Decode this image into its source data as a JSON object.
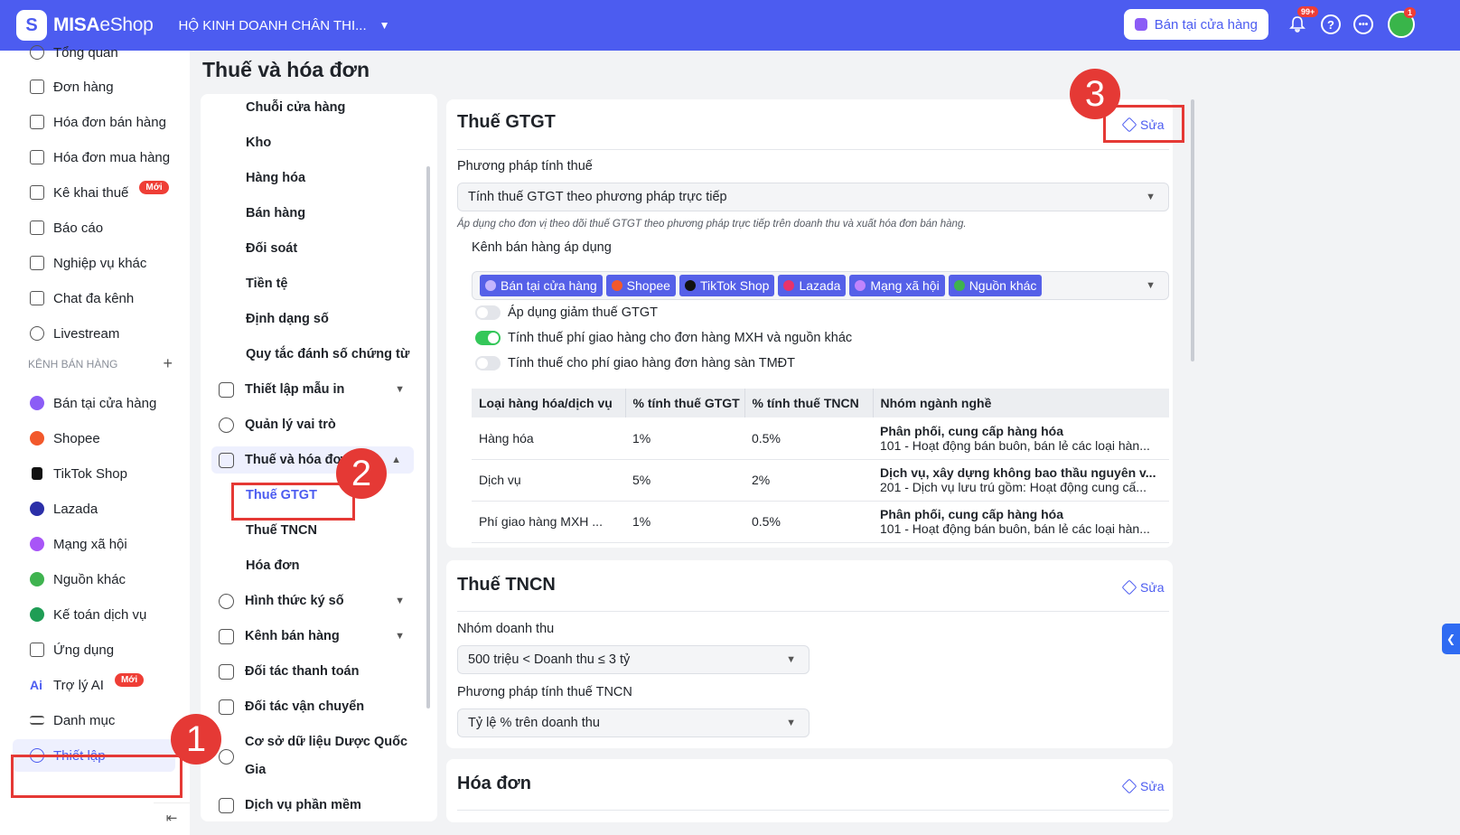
{
  "topbar": {
    "logo_bold": "MISA",
    "logo_thin": "eShop",
    "store_name": "HỘ KINH DOANH CHÂN THI...",
    "sell_button": "Bán tại cửa hàng",
    "notif_badge": "99+",
    "help_icon_text": "?",
    "avatar_badge": "1",
    "brand_color": "#4c5cf0"
  },
  "sidebar": {
    "items": [
      {
        "label": "Tổng quan",
        "icon": "dashboard-icon"
      },
      {
        "label": "Đơn hàng",
        "icon": "order-icon"
      },
      {
        "label": "Hóa đơn bán hàng",
        "icon": "sales-invoice-icon"
      },
      {
        "label": "Hóa đơn mua hàng",
        "icon": "purchase-invoice-icon"
      },
      {
        "label": "Kê khai thuế",
        "icon": "tax-declaration-icon",
        "badge": "Mới"
      },
      {
        "label": "Báo cáo",
        "icon": "report-icon"
      },
      {
        "label": "Nghiệp vụ khác",
        "icon": "other-ops-icon"
      },
      {
        "label": "Chat đa kênh",
        "icon": "chat-icon"
      },
      {
        "label": "Livestream",
        "icon": "livestream-icon"
      }
    ],
    "section_title": "KÊNH BÁN HÀNG",
    "channels": [
      {
        "label": "Bán tại cửa hàng",
        "color": "#8b5cf6"
      },
      {
        "label": "Shopee",
        "color": "#f2582b"
      },
      {
        "label": "TikTok Shop",
        "color": "#111111"
      },
      {
        "label": "Lazada",
        "color": "#2b2fa8"
      },
      {
        "label": "Mạng xã hội",
        "color": "#a855f7"
      },
      {
        "label": "Nguồn khác",
        "color": "#3fb34f"
      },
      {
        "label": "Kế toán dịch vụ",
        "color": "#1f9d55"
      }
    ],
    "extras": [
      {
        "label": "Ứng dụng",
        "icon": "apps-icon"
      },
      {
        "label": "Trợ lý AI",
        "icon": "ai-icon",
        "badge": "Mới"
      },
      {
        "label": "Danh mục",
        "icon": "list-icon"
      },
      {
        "label": "Thiết lập",
        "icon": "gear-icon"
      }
    ]
  },
  "page_title": "Thuế và hóa đơn",
  "settings_menu": {
    "items": [
      "Chuỗi cửa hàng",
      "Kho",
      "Hàng hóa",
      "Bán hàng",
      "Đối soát",
      "Tiền tệ",
      "Định dạng số",
      "Quy tắc đánh số chứng từ",
      "Thiết lập mẫu in",
      "Quản lý vai trò",
      "Thuế và hóa đơn",
      "Thuế GTGT",
      "Thuế TNCN",
      "Hóa đơn",
      "Hình thức ký số",
      "Kênh bán hàng",
      "Đối tác thanh toán",
      "Đối tác vận chuyển",
      "Cơ sở dữ liệu Dược Quốc",
      "Gia",
      "Dịch vụ phần mềm"
    ]
  },
  "gtgt": {
    "title": "Thuế GTGT",
    "edit": "Sửa",
    "method_label": "Phương pháp tính thuế",
    "method_value": "Tính thuế GTGT theo phương pháp trực tiếp",
    "note": "Áp dụng cho đơn vị theo dõi thuế GTGT theo phương pháp trực tiếp trên doanh thu và xuất hóa đơn bán hàng.",
    "channels_label": "Kênh bán hàng áp dụng",
    "channels": [
      {
        "label": "Bán tại cửa hàng",
        "color": "#c4b5fd"
      },
      {
        "label": "Shopee",
        "color": "#f2582b"
      },
      {
        "label": "TikTok Shop",
        "color": "#111111"
      },
      {
        "label": "Lazada",
        "color": "#e8336b"
      },
      {
        "label": "Mạng xã hội",
        "color": "#c084fc"
      },
      {
        "label": "Nguồn khác",
        "color": "#3fb34f"
      }
    ],
    "toggles": [
      {
        "label": "Áp dụng giảm thuế GTGT",
        "on": false
      },
      {
        "label": "Tính thuế phí giao hàng cho đơn hàng MXH và nguồn khác",
        "on": true
      },
      {
        "label": "Tính thuế cho phí giao hàng đơn hàng sàn TMĐT",
        "on": false
      }
    ],
    "table": {
      "headers": [
        "Loại hàng hóa/dịch vụ",
        "% tính thuế GTGT",
        "% tính thuế TNCN",
        "Nhóm ngành nghề"
      ],
      "rows": [
        {
          "type": "Hàng hóa",
          "vat": "1%",
          "pit": "0.5%",
          "group": "Phân phối, cung cấp hàng hóa",
          "desc": "101 - Hoạt động bán buôn, bán lẻ các loại hàn..."
        },
        {
          "type": "Dịch vụ",
          "vat": "5%",
          "pit": "2%",
          "group": "Dịch vụ, xây dựng không bao thầu nguyên v...",
          "desc": "201 - Dịch vụ lưu trú gồm: Hoạt động cung cấ..."
        },
        {
          "type": "Phí giao hàng MXH ...",
          "vat": "1%",
          "pit": "0.5%",
          "group": "Phân phối, cung cấp hàng hóa",
          "desc": "101 - Hoạt động bán buôn, bán lẻ các loại hàn..."
        }
      ]
    }
  },
  "tncn": {
    "title": "Thuế TNCN",
    "edit": "Sửa",
    "revenue_label": "Nhóm doanh thu",
    "revenue_value": "500 triệu < Doanh thu ≤ 3 tỷ",
    "method_label": "Phương pháp tính thuế TNCN",
    "method_value": "Tỷ lệ % trên doanh thu"
  },
  "invoice": {
    "title": "Hóa đơn",
    "edit": "Sửa"
  },
  "annotations": {
    "marker1": "1",
    "marker2": "2",
    "marker3": "3",
    "color": "#e53935"
  }
}
